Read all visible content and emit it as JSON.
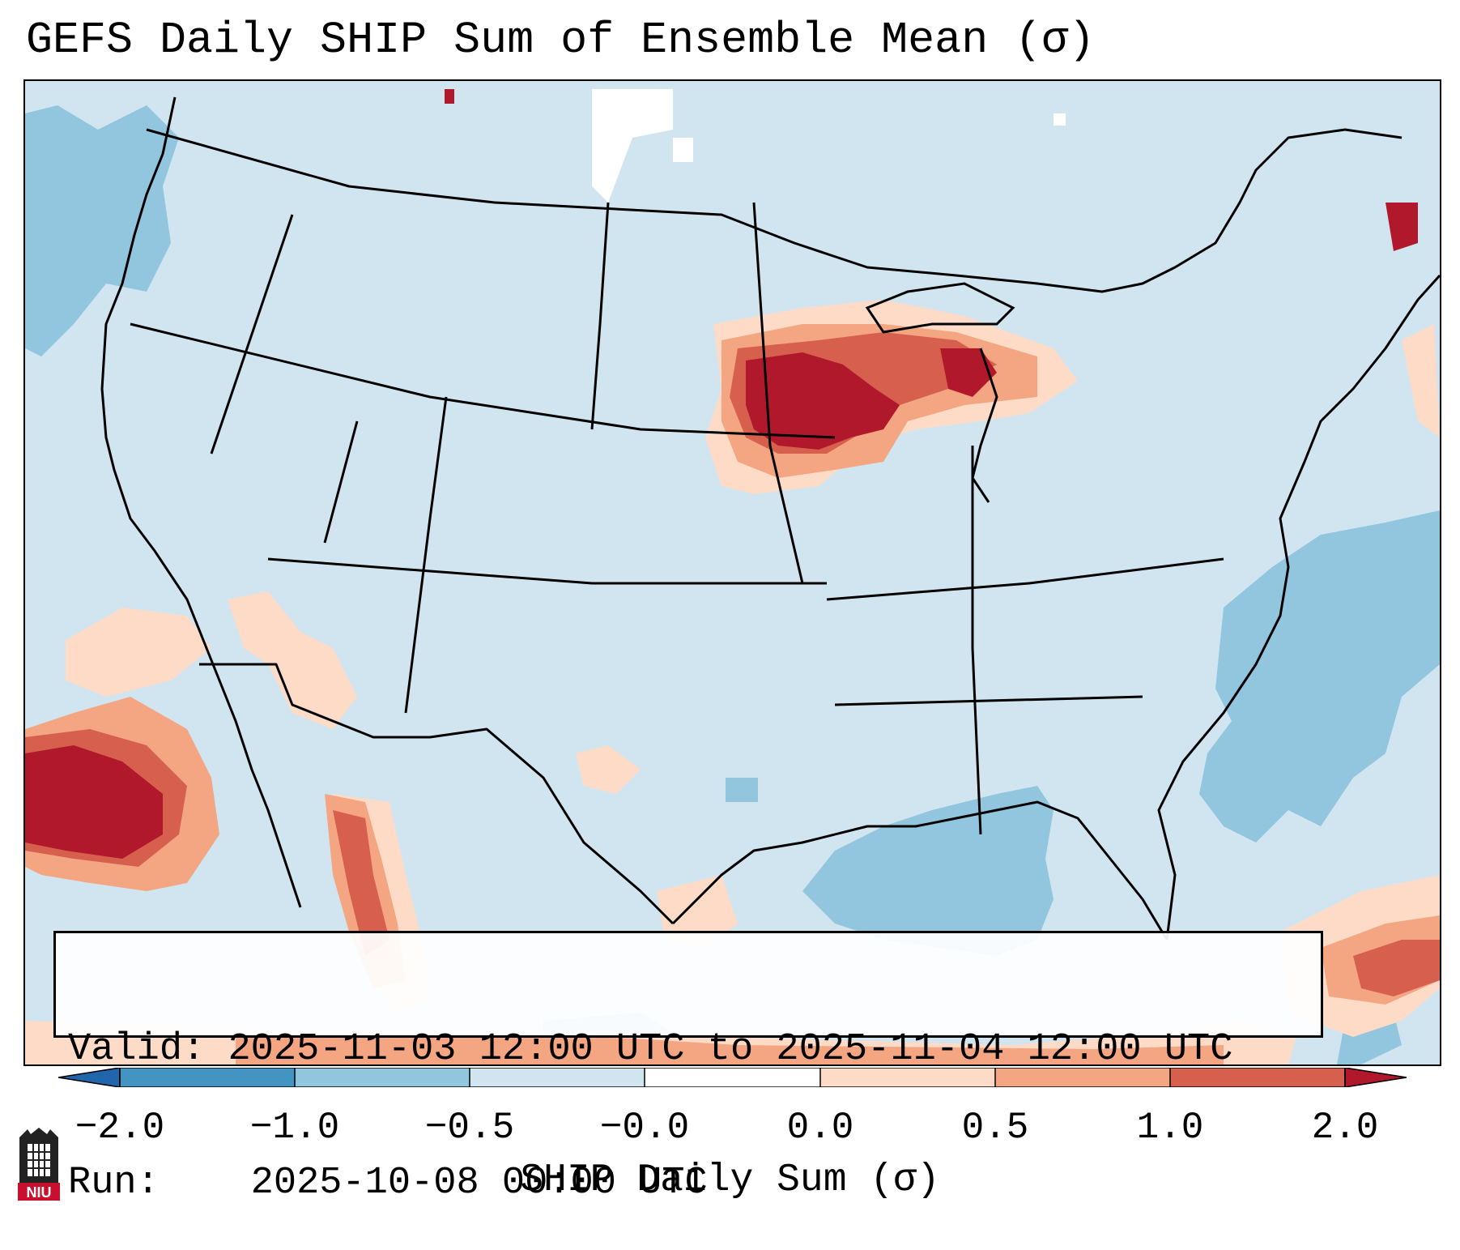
{
  "title": "GEFS Daily SHIP Sum of Ensemble Mean (σ)",
  "info": {
    "valid_label": "Valid:",
    "valid_value": "2025-11-03 12:00 UTC to 2025-11-04 12:00 UTC",
    "run_label": "Run:  ",
    "run_value": "2025-10-08 00:00 UTC"
  },
  "colorbar": {
    "label": "SHIP Daily Sum (σ)",
    "ticks": [
      "−2.0",
      "−1.0",
      "−0.5",
      "−0.0",
      "0.0",
      "0.5",
      "1.0",
      "2.0"
    ],
    "colors": [
      "#4393c3",
      "#92c5de",
      "#d1e5f0",
      "#fddbc7",
      "#f4a582",
      "#d6604d",
      "#b2182b"
    ],
    "extend": "both"
  },
  "logo": {
    "text": "NIU"
  },
  "colors": {
    "background_field": "#d1e5f0",
    "strong_negative": "#92c5de",
    "weak_positive": "#fddbc7",
    "moderate_positive": "#f4a582",
    "high_positive": "#d6604d",
    "extreme_positive": "#b2182b"
  }
}
